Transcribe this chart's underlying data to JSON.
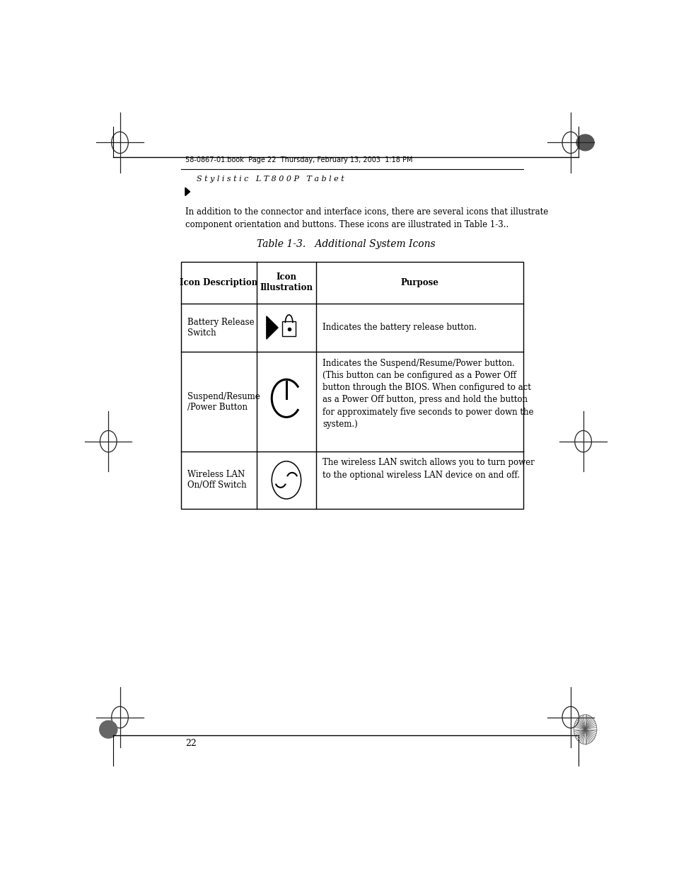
{
  "page_bg": "#ffffff",
  "header_text": "58-0867-01.book  Page 22  Thursday, February 13, 2003  1:18 PM",
  "header_italic": "S t y l i s t i c   L T 8 0 0 P   T a b l e t",
  "body_text": "In addition to the connector and interface icons, there are several icons that illustrate\ncomponent orientation and buttons. These icons are illustrated in Table 1-3..",
  "table_title": "Table 1-3.   Additional System Icons",
  "col_headers": [
    "Icon Description",
    "Icon\nIllustration",
    "Purpose"
  ],
  "row1_desc": "Battery Release\nSwitch",
  "row1_purpose": "Indicates the battery release button.",
  "row2_desc": "Suspend/Resume\n/Power Button",
  "row2_purpose": "Indicates the Suspend/Resume/Power button.\n(This button can be configured as a Power Off\nbutton through the BIOS. When configured to act\nas a Power Off button, press and hold the button\nfor approximately five seconds to power down the\nsystem.)",
  "row3_desc": "Wireless LAN\nOn/Off Switch",
  "row3_purpose": "The wireless LAN switch allows you to turn power\nto the optional wireless LAN device on and off.",
  "page_number": "22"
}
